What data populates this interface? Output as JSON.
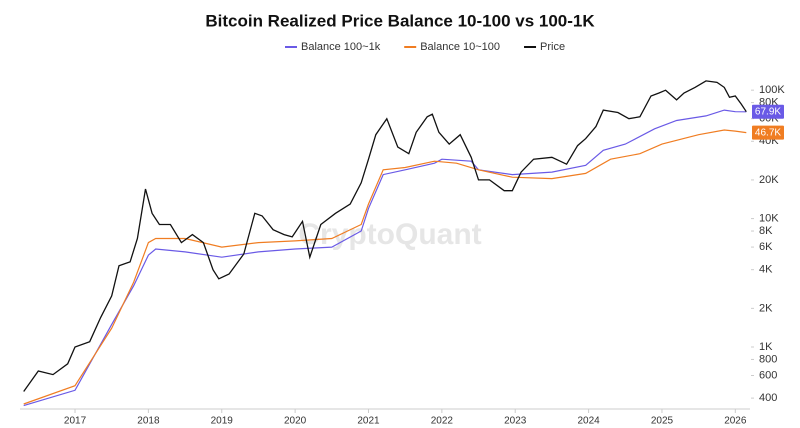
{
  "chart_data": {
    "type": "line",
    "title": "Bitcoin Realized Price Balance 10-100 vs 100-1K",
    "watermark": "CryptoQuant",
    "log_y": true,
    "grid": false,
    "legend": "top",
    "xlim": [
      2016.25,
      2026.2
    ],
    "xticks": [
      2017,
      2018,
      2019,
      2020,
      2021,
      2022,
      2023,
      2024,
      2025,
      2026
    ],
    "ylim": [
      335,
      120000
    ],
    "yticks": [
      400,
      600,
      800,
      {
        "value": 1000,
        "label": "1K"
      },
      {
        "value": 2000,
        "label": "2K"
      },
      {
        "value": 4000,
        "label": "4K"
      },
      {
        "value": 6000,
        "label": "6K"
      },
      {
        "value": 8000,
        "label": "8K"
      },
      {
        "value": 10000,
        "label": "10K"
      },
      {
        "value": 20000,
        "label": "20K"
      },
      {
        "value": 40000,
        "label": "40K"
      },
      {
        "value": 60000,
        "label": "60K"
      },
      {
        "value": 80000,
        "label": "80K"
      },
      {
        "value": 100000,
        "label": "100K"
      }
    ],
    "series": [
      {
        "name": "Balance 100~1k",
        "color": "#6a5ae6",
        "x": [
          2016.3,
          2017.0,
          2017.5,
          2017.8,
          2018.0,
          2018.1,
          2018.5,
          2019.0,
          2019.5,
          2020.0,
          2020.5,
          2020.9,
          2021.0,
          2021.2,
          2021.5,
          2021.9,
          2022.0,
          2022.4,
          2022.5,
          2022.96,
          2023.5,
          2023.96,
          2024.2,
          2024.5,
          2024.9,
          2025.2,
          2025.6,
          2025.85,
          2026.0,
          2026.15
        ],
        "values": [
          350,
          460,
          1500,
          3000,
          5200,
          5800,
          5500,
          5000,
          5500,
          5800,
          6000,
          8000,
          12000,
          22000,
          24000,
          27000,
          29000,
          28000,
          24000,
          22000,
          23000,
          26000,
          34000,
          38000,
          50000,
          58000,
          63000,
          70000,
          68000,
          67900
        ],
        "value_labels": [
          null,
          null,
          null,
          null,
          null,
          null,
          null,
          null,
          null,
          null,
          null,
          null,
          null,
          null,
          null,
          null,
          null,
          null,
          null,
          null,
          null,
          null,
          null,
          null,
          null,
          null,
          null,
          null,
          null,
          "67.9K"
        ]
      },
      {
        "name": "Balance 10~100",
        "color": "#f07d22",
        "x": [
          2016.3,
          2017.0,
          2017.5,
          2017.8,
          2018.0,
          2018.1,
          2018.5,
          2019.0,
          2019.5,
          2020.0,
          2020.5,
          2020.9,
          2021.0,
          2021.2,
          2021.5,
          2021.9,
          2022.2,
          2022.5,
          2022.96,
          2023.5,
          2023.96,
          2024.3,
          2024.7,
          2025.0,
          2025.5,
          2025.85,
          2026.0,
          2026.15
        ],
        "values": [
          360,
          500,
          1400,
          3200,
          6500,
          7000,
          7000,
          6000,
          6500,
          6700,
          7000,
          9000,
          13000,
          24000,
          25000,
          28000,
          27000,
          24000,
          21000,
          20500,
          22500,
          29000,
          32000,
          38000,
          45000,
          49000,
          48000,
          46700
        ],
        "value_labels": [
          null,
          null,
          null,
          null,
          null,
          null,
          null,
          null,
          null,
          null,
          null,
          null,
          null,
          null,
          null,
          null,
          null,
          null,
          null,
          null,
          null,
          null,
          null,
          null,
          null,
          null,
          null,
          "46.7K"
        ]
      },
      {
        "name": "Price",
        "color": "#111111",
        "x": [
          2016.3,
          2016.5,
          2016.7,
          2016.9,
          2017.0,
          2017.2,
          2017.35,
          2017.5,
          2017.6,
          2017.75,
          2017.85,
          2017.96,
          2018.05,
          2018.15,
          2018.3,
          2018.45,
          2018.6,
          2018.75,
          2018.88,
          2018.96,
          2019.1,
          2019.3,
          2019.45,
          2019.55,
          2019.7,
          2019.85,
          2019.96,
          2020.1,
          2020.2,
          2020.35,
          2020.55,
          2020.75,
          2020.9,
          2021.0,
          2021.1,
          2021.25,
          2021.4,
          2021.55,
          2021.65,
          2021.8,
          2021.87,
          2021.96,
          2022.1,
          2022.25,
          2022.4,
          2022.5,
          2022.65,
          2022.85,
          2022.96,
          2023.08,
          2023.25,
          2023.5,
          2023.7,
          2023.85,
          2023.96,
          2024.1,
          2024.2,
          2024.4,
          2024.55,
          2024.7,
          2024.85,
          2024.96,
          2025.05,
          2025.2,
          2025.3,
          2025.45,
          2025.6,
          2025.75,
          2025.85,
          2025.92,
          2026.0,
          2026.08,
          2026.15
        ],
        "values": [
          450,
          650,
          610,
          740,
          1000,
          1100,
          1700,
          2500,
          4300,
          4600,
          7000,
          17000,
          11000,
          9000,
          9000,
          6500,
          7500,
          6500,
          4000,
          3400,
          3700,
          5300,
          11000,
          10500,
          8200,
          7500,
          7200,
          9500,
          5000,
          9000,
          11000,
          13000,
          19000,
          29000,
          45000,
          60000,
          36000,
          32000,
          47000,
          62000,
          65000,
          47000,
          38000,
          45000,
          30000,
          20000,
          20000,
          16500,
          16500,
          23000,
          29000,
          30000,
          26500,
          37000,
          42000,
          52000,
          70000,
          67000,
          60000,
          62000,
          90000,
          95000,
          100000,
          84000,
          95000,
          105000,
          118000,
          115000,
          105000,
          88000,
          90000,
          78000,
          68000
        ]
      }
    ]
  }
}
